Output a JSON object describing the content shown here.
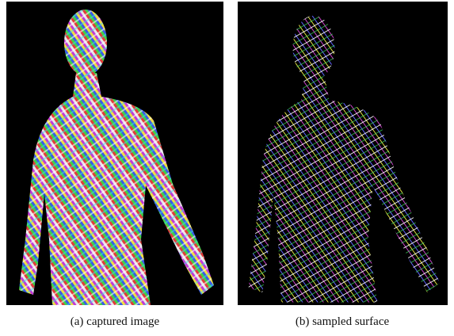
{
  "figure": {
    "subfigures": [
      {
        "label": "(a)",
        "caption": "captured image"
      },
      {
        "label": "(b)",
        "caption": "sampled surface"
      }
    ]
  }
}
